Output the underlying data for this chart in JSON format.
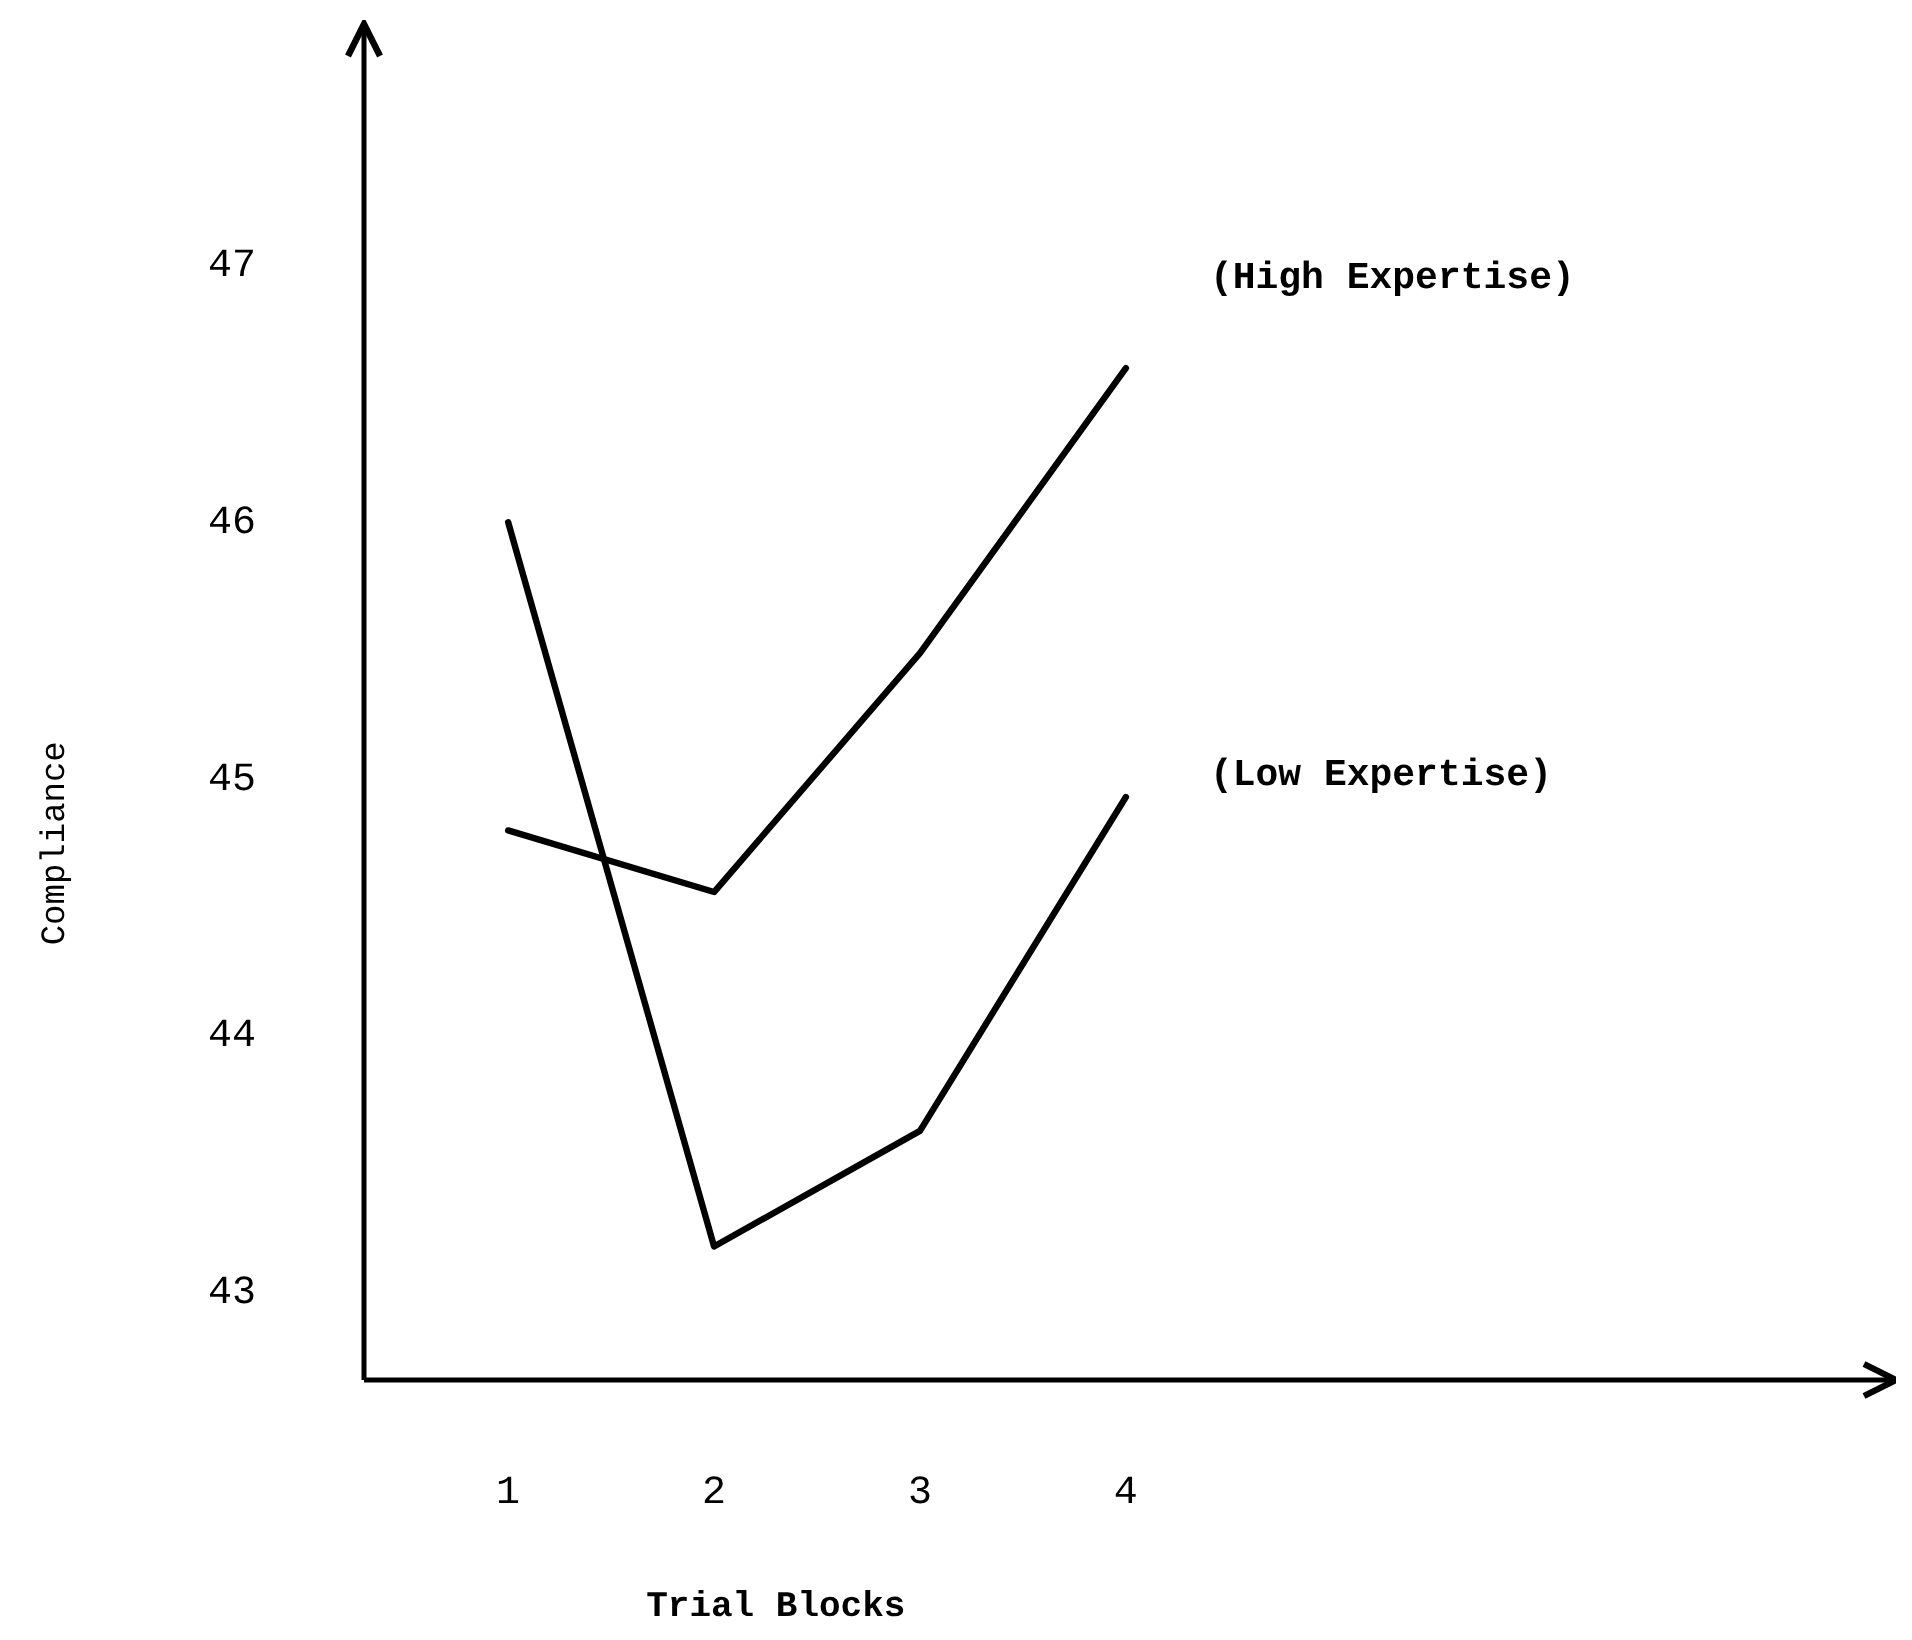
{
  "chart_data": {
    "type": "line",
    "xlabel": "Trial Blocks",
    "ylabel": "Compliance",
    "x": [
      1,
      2,
      3,
      4
    ],
    "xlim": [
      0.3,
      7.74
    ],
    "xticks": [
      1,
      2,
      3,
      4
    ],
    "ylim": [
      42.66,
      47.94
    ],
    "yticks": [
      43,
      44,
      45,
      46,
      47
    ],
    "grid": false,
    "legend": false,
    "marker": "none",
    "line_style": "solid",
    "series": [
      {
        "name": "(High Expertise)",
        "color": "#000000",
        "values": [
          44.8,
          44.56,
          45.49,
          46.6
        ]
      },
      {
        "name": "(Low Expertise)",
        "color": "#000000",
        "values": [
          46.0,
          43.18,
          43.63,
          44.93
        ]
      }
    ]
  }
}
